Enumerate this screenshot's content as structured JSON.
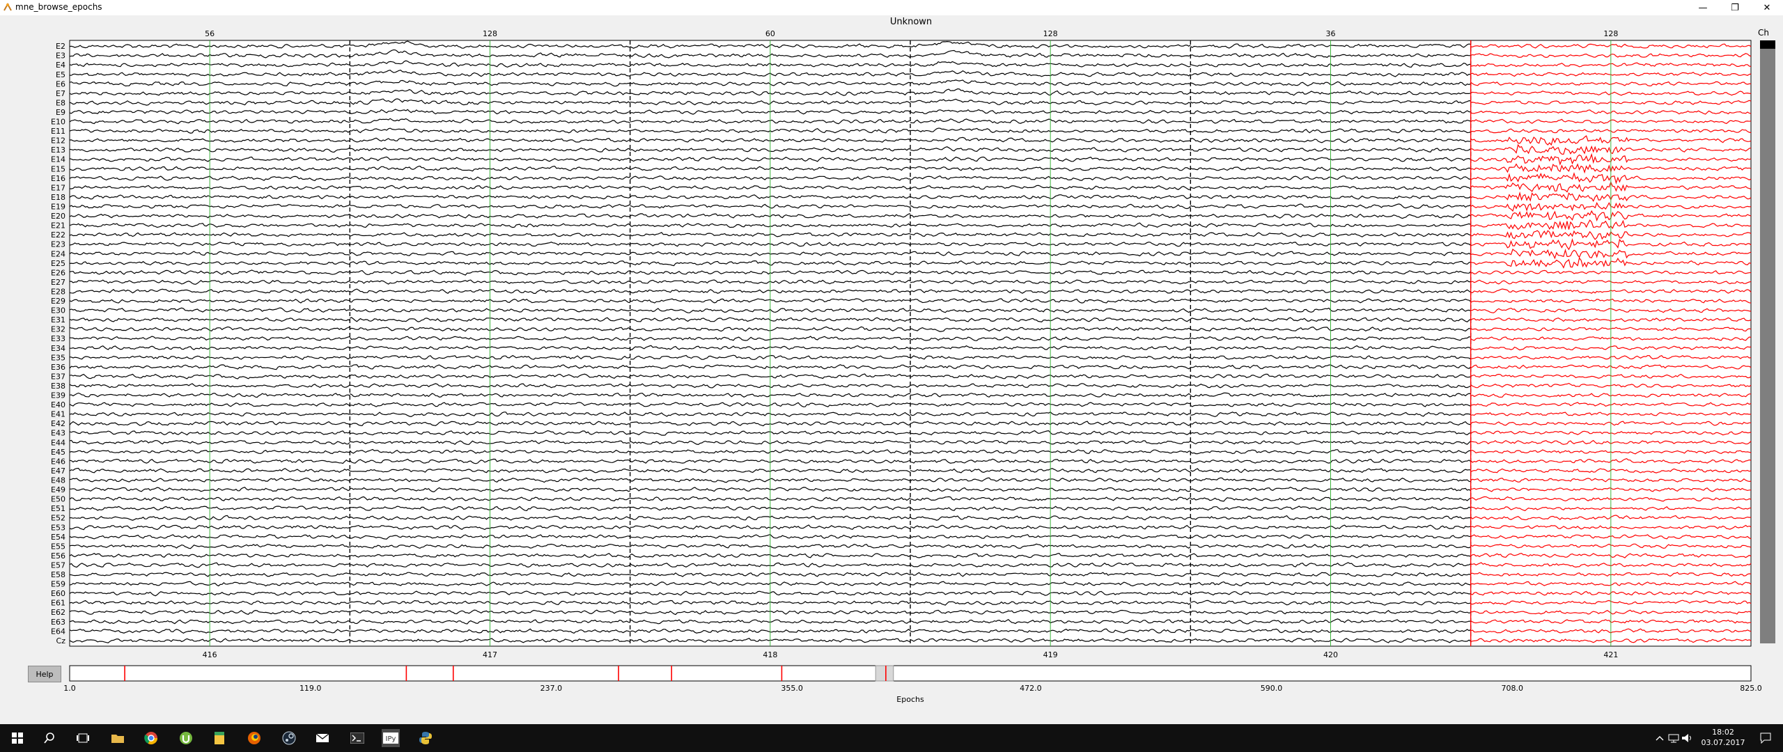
{
  "window": {
    "title": "mne_browse_epochs",
    "min_glyph": "—",
    "max_glyph": "❐",
    "close_glyph": "✕"
  },
  "figure": {
    "title": "Unknown",
    "channel_scroll_label": "Ch",
    "xlabel": "Epochs",
    "help_label": "Help"
  },
  "channels": [
    "E2",
    "E3",
    "E4",
    "E5",
    "E6",
    "E7",
    "E8",
    "E9",
    "E10",
    "E11",
    "E12",
    "E13",
    "E14",
    "E15",
    "E16",
    "E17",
    "E18",
    "E19",
    "E20",
    "E21",
    "E22",
    "E23",
    "E24",
    "E25",
    "E26",
    "E27",
    "E28",
    "E29",
    "E30",
    "E31",
    "E32",
    "E33",
    "E34",
    "E35",
    "E36",
    "E37",
    "E38",
    "E39",
    "E40",
    "E41",
    "E42",
    "E43",
    "E44",
    "E45",
    "E46",
    "E47",
    "E48",
    "E49",
    "E50",
    "E51",
    "E52",
    "E53",
    "E54",
    "E55",
    "E56",
    "E57",
    "E58",
    "E59",
    "E60",
    "E61",
    "E62",
    "E63",
    "E64",
    "Cz"
  ],
  "epochs": [
    {
      "number": "416",
      "event": "56",
      "bad": false
    },
    {
      "number": "417",
      "event": "128",
      "bad": false
    },
    {
      "number": "418",
      "event": "60",
      "bad": false
    },
    {
      "number": "419",
      "event": "128",
      "bad": false
    },
    {
      "number": "420",
      "event": "36",
      "bad": false
    },
    {
      "number": "421",
      "event": "128",
      "bad": true
    }
  ],
  "colors": {
    "trace": "#000000",
    "bad_trace": "#ff0000",
    "event_line": "#3cb43c",
    "epoch_separator": "#000000",
    "scrollbar": "#7f7f7f"
  },
  "epoch_scrollbar": {
    "ticks": [
      "1.0",
      "119.0",
      "237.0",
      "355.0",
      "472.0",
      "590.0",
      "708.0",
      "825.0"
    ],
    "range": [
      1,
      825
    ],
    "bad_marks": [
      28,
      166,
      189,
      270,
      296,
      350,
      401
    ],
    "view_start": 396,
    "view_end": 402
  },
  "taskbar": {
    "icons": [
      "windows-start",
      "search",
      "task-view",
      "file-explorer",
      "chrome",
      "utorrent",
      "notes",
      "firefox",
      "steam",
      "mail",
      "terminal",
      "ipython",
      "python"
    ],
    "time": "18:02",
    "date": "03.07.2017"
  }
}
